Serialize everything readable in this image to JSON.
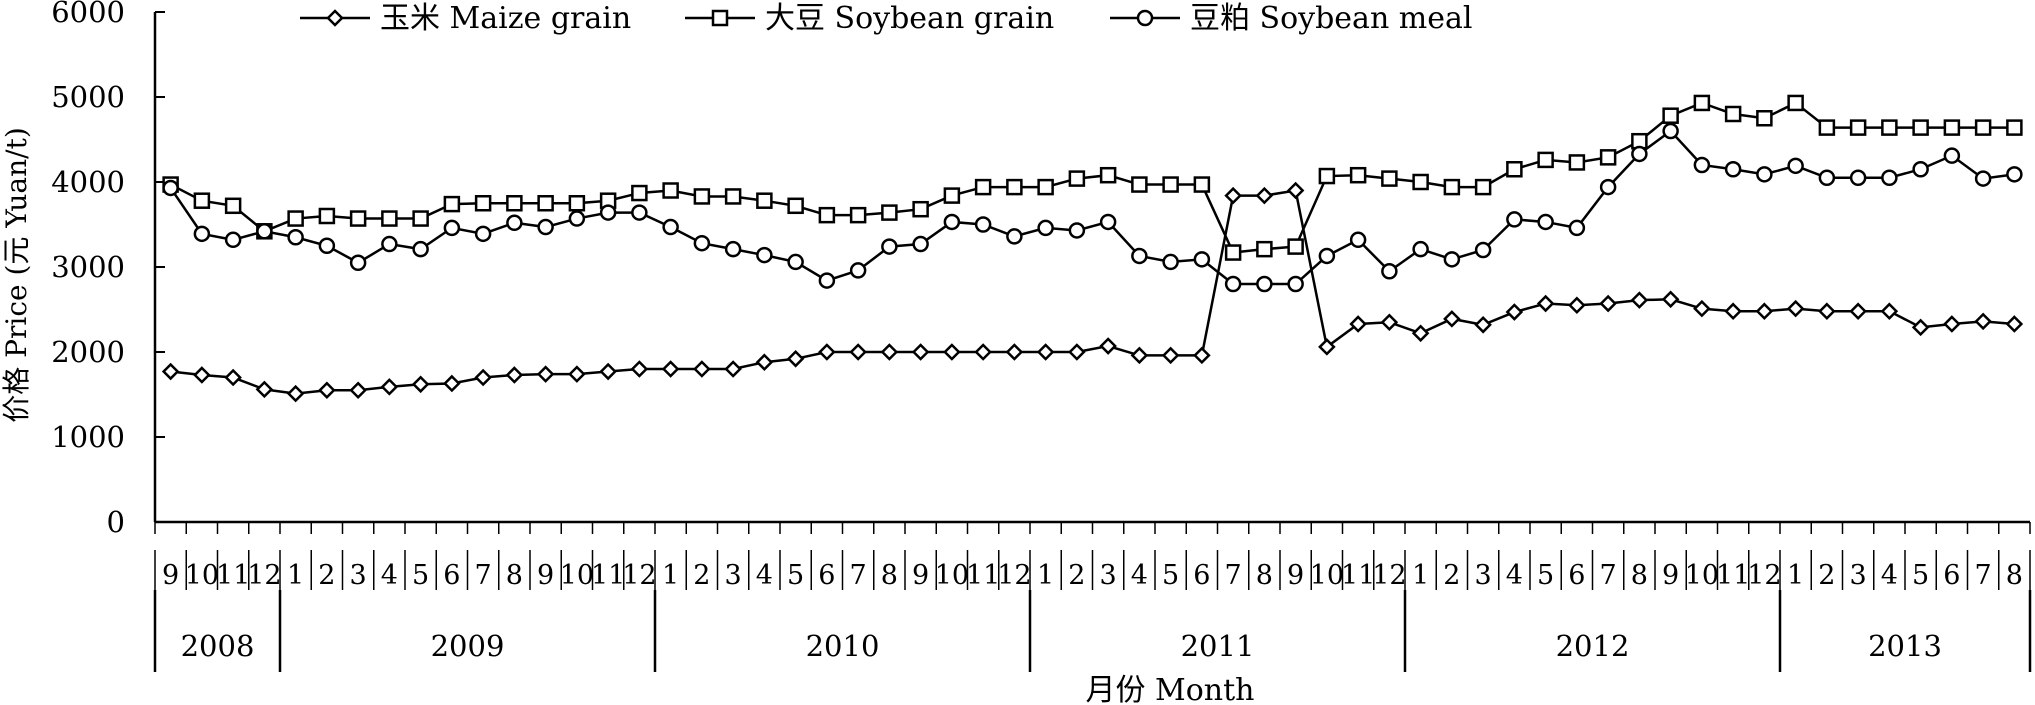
{
  "chart_data": {
    "type": "line",
    "ylabel": "价格 Price (元 Yuan/t)",
    "xlabel": "月份 Month",
    "ylim": [
      0,
      6000
    ],
    "yticks": [
      0,
      1000,
      2000,
      3000,
      4000,
      5000,
      6000
    ],
    "grid": false,
    "legend": "top",
    "months": [
      "9",
      "10",
      "11",
      "12",
      "1",
      "2",
      "3",
      "4",
      "5",
      "6",
      "7",
      "8",
      "9",
      "10",
      "11",
      "12",
      "1",
      "2",
      "3",
      "4",
      "5",
      "6",
      "7",
      "8",
      "9",
      "10",
      "11",
      "12",
      "1",
      "2",
      "3",
      "4",
      "5",
      "6",
      "7",
      "8",
      "9",
      "10",
      "11",
      "12",
      "1",
      "2",
      "3",
      "4",
      "5",
      "6",
      "7",
      "8",
      "9",
      "10",
      "11",
      "12",
      "1",
      "2",
      "3",
      "4",
      "5",
      "6",
      "7",
      "8"
    ],
    "years": [
      {
        "label": "2008",
        "count": 4
      },
      {
        "label": "2009",
        "count": 12
      },
      {
        "label": "2010",
        "count": 12
      },
      {
        "label": "2011",
        "count": 12
      },
      {
        "label": "2012",
        "count": 12
      },
      {
        "label": "2013",
        "count": 8
      }
    ],
    "series": [
      {
        "name": "玉米 Maize grain",
        "marker": "diamond",
        "values": [
          1770,
          1730,
          1700,
          1560,
          1510,
          1550,
          1550,
          1590,
          1620,
          1630,
          1700,
          1730,
          1740,
          1740,
          1770,
          1800,
          1800,
          1800,
          1800,
          1880,
          1920,
          2000,
          2000,
          2000,
          2000,
          2000,
          2000,
          2000,
          2000,
          2000,
          2070,
          1960,
          1960,
          1960,
          3840,
          3840,
          3900,
          2060,
          2330,
          2350,
          2220,
          2390,
          2320,
          2470,
          2570,
          2550,
          2570,
          2610,
          2620,
          2510,
          2480,
          2480,
          2510,
          2480,
          2480,
          2480,
          2290,
          2330,
          2360,
          2330
        ]
      },
      {
        "name": "大豆 Soybean grain",
        "marker": "square",
        "values": [
          3970,
          3780,
          3720,
          3420,
          3570,
          3600,
          3570,
          3570,
          3570,
          3740,
          3750,
          3750,
          3750,
          3750,
          3780,
          3870,
          3900,
          3830,
          3830,
          3780,
          3720,
          3610,
          3610,
          3640,
          3680,
          3840,
          3940,
          3940,
          3940,
          4040,
          4080,
          3970,
          3970,
          3970,
          3170,
          3210,
          3240,
          4070,
          4080,
          4040,
          4000,
          3940,
          3940,
          4150,
          4260,
          4230,
          4290,
          4480,
          4780,
          4930,
          4800,
          4750,
          4930,
          4640,
          4640,
          4640,
          4640,
          4640,
          4640,
          4640
        ]
      },
      {
        "name": "豆粕 Soybean meal",
        "marker": "circle",
        "values": [
          3930,
          3390,
          3320,
          3420,
          3350,
          3250,
          3050,
          3270,
          3210,
          3460,
          3390,
          3520,
          3470,
          3570,
          3640,
          3640,
          3470,
          3280,
          3210,
          3140,
          3060,
          2840,
          2960,
          3240,
          3270,
          3530,
          3500,
          3360,
          3460,
          3430,
          3530,
          3130,
          3060,
          3090,
          2800,
          2800,
          2800,
          3130,
          3320,
          2950,
          3210,
          3090,
          3200,
          3560,
          3530,
          3460,
          3940,
          4330,
          4600,
          4200,
          4150,
          4090,
          4190,
          4050,
          4050,
          4050,
          4150,
          4310,
          4040,
          4090
        ]
      }
    ]
  }
}
